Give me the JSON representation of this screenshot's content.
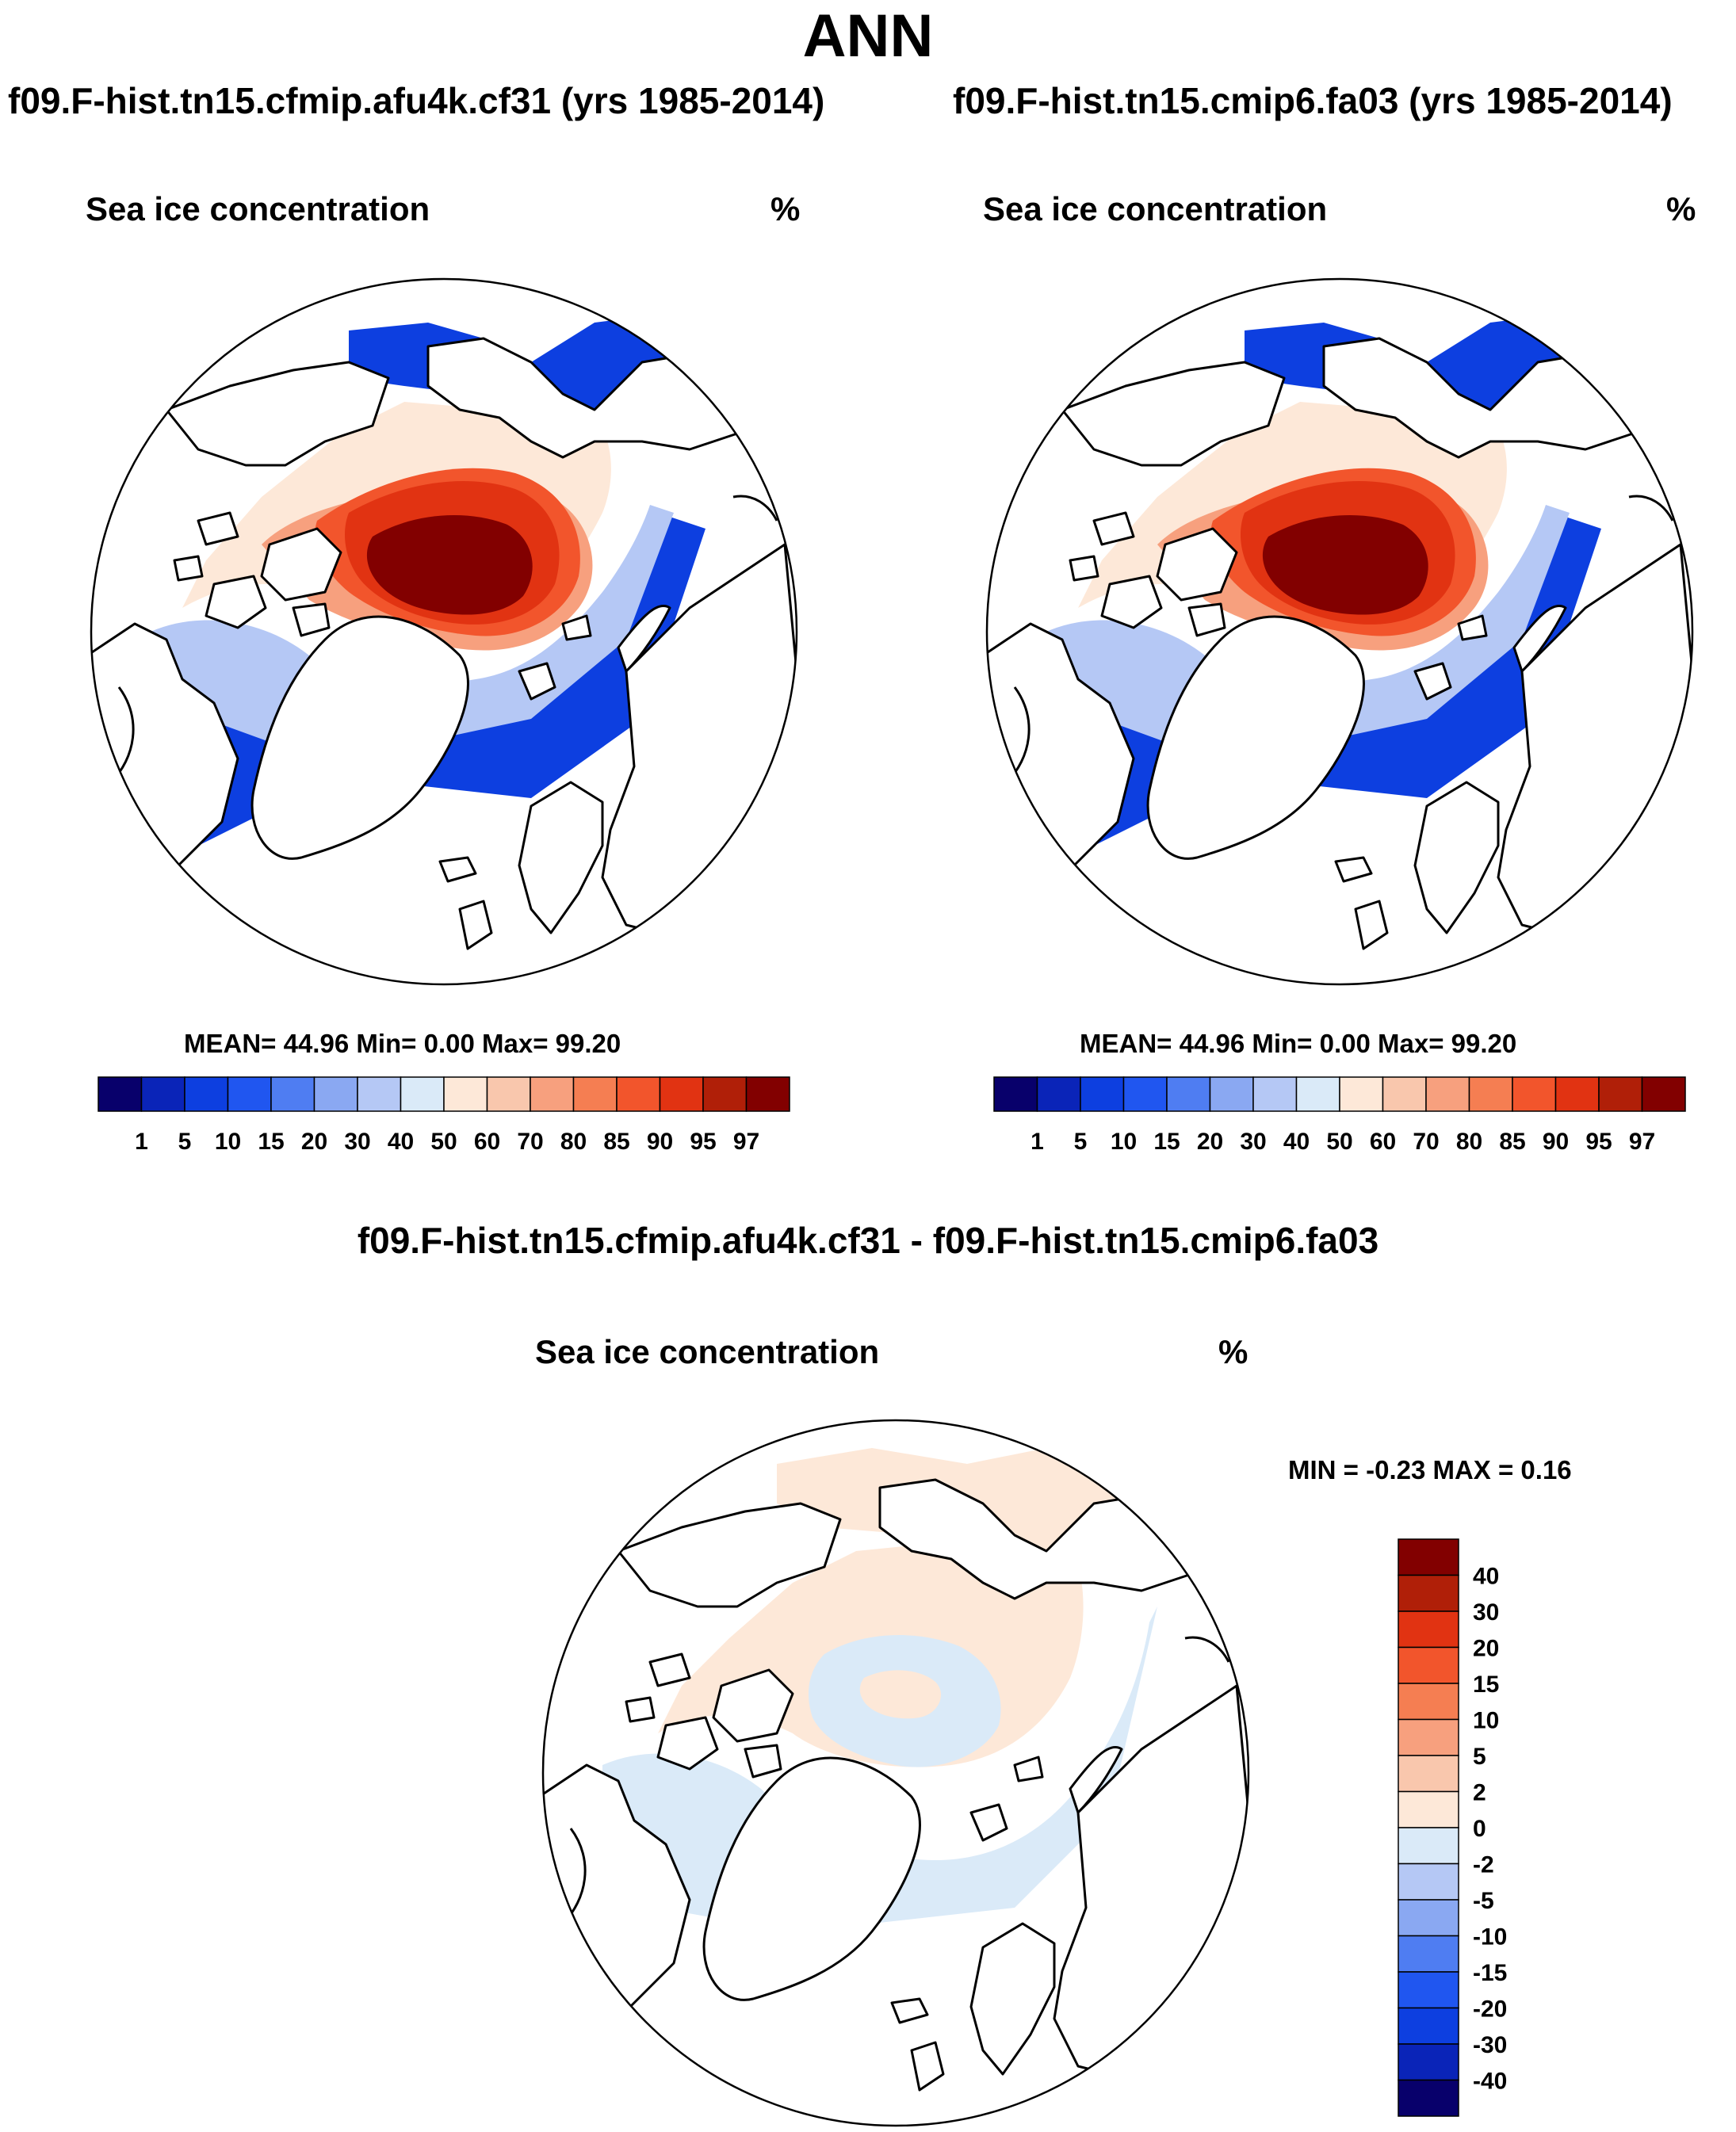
{
  "page": {
    "title": "ANN",
    "difference_title": "f09.F-hist.tn15.cfmip.afu4k.cf31 - f09.F-hist.tn15.cmip6.fa03"
  },
  "panels": [
    {
      "experiment": "f09.F-hist.tn15.cfmip.afu4k.cf31 (yrs 1985-2014)",
      "variable": "Sea ice concentration",
      "units": "%",
      "stats": "MEAN=  44.96  Min=    0.00  Max=  99.20"
    },
    {
      "experiment": "f09.F-hist.tn15.cmip6.fa03 (yrs 1985-2014)",
      "variable": "Sea ice concentration",
      "units": "%",
      "stats": "MEAN=  44.96  Min=    0.00  Max=  99.20"
    },
    {
      "experiment": "f09.F-hist.tn15.cfmip.afu4k.cf31 - f09.F-hist.tn15.cmip6.fa03",
      "variable": "Sea ice concentration",
      "units": "%",
      "stats": "MIN =  -0.23 MAX =   0.16"
    }
  ],
  "colors": {
    "abs_scale": [
      "#08006b",
      "#0a24b8",
      "#0d3fe0",
      "#2056f0",
      "#4f7df2",
      "#8aa8f2",
      "#b5c8f5",
      "#daeaf8",
      "#fde8d8",
      "#f9c7ad",
      "#f7a07e",
      "#f57e52",
      "#f2552c",
      "#e13312",
      "#b01f08",
      "#820000"
    ],
    "diff_scale": [
      "#08006b",
      "#0a24b8",
      "#0d3fe0",
      "#2056f0",
      "#4f7df2",
      "#8aa8f2",
      "#b5c8f5",
      "#daeaf8",
      "#fde8d8",
      "#f9c7ad",
      "#f7a07e",
      "#f57e52",
      "#f2552c",
      "#e13312",
      "#b01f08",
      "#820000"
    ]
  },
  "chart_data": [
    {
      "type": "heatmap",
      "title": "f09.F-hist.tn15.cfmip.afu4k.cf31 (yrs 1985-2014)",
      "subtitle": "Sea ice concentration",
      "units": "%",
      "projection": "north polar stereographic",
      "summary": {
        "mean": 44.96,
        "min": 0.0,
        "max": 99.2
      },
      "colorbar_levels": [
        1,
        5,
        10,
        15,
        20,
        30,
        40,
        50,
        60,
        70,
        80,
        85,
        90,
        95,
        97
      ]
    },
    {
      "type": "heatmap",
      "title": "f09.F-hist.tn15.cmip6.fa03 (yrs 1985-2014)",
      "subtitle": "Sea ice concentration",
      "units": "%",
      "projection": "north polar stereographic",
      "summary": {
        "mean": 44.96,
        "min": 0.0,
        "max": 99.2
      },
      "colorbar_levels": [
        1,
        5,
        10,
        15,
        20,
        30,
        40,
        50,
        60,
        70,
        80,
        85,
        90,
        95,
        97
      ]
    },
    {
      "type": "heatmap",
      "title": "f09.F-hist.tn15.cfmip.afu4k.cf31 - f09.F-hist.tn15.cmip6.fa03",
      "subtitle": "Sea ice concentration",
      "units": "%",
      "projection": "north polar stereographic",
      "summary": {
        "min": -0.23,
        "max": 0.16
      },
      "colorbar_levels": [
        40,
        30,
        20,
        15,
        10,
        5,
        2,
        0,
        -2,
        -5,
        -10,
        -15,
        -20,
        -30,
        -40
      ]
    }
  ]
}
